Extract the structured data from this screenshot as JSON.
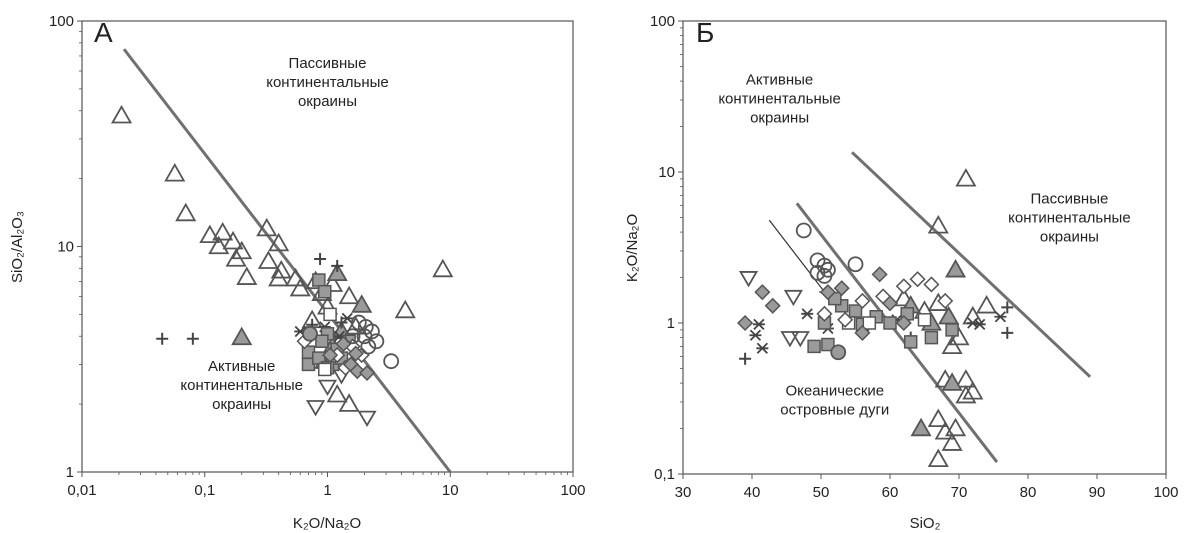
{
  "chart_data": [
    {
      "type": "scatter",
      "title": "А",
      "xlabel": "K₂O/Na₂O",
      "ylabel": "SiO₂/Al₂O₃",
      "xscale": "log",
      "yscale": "log",
      "xlim": [
        0.01,
        100
      ],
      "ylim": [
        1,
        100
      ],
      "xticks": [
        "0,01",
        "0,1",
        "1",
        "10",
        "100"
      ],
      "yticks": [
        "1",
        "10",
        "100"
      ],
      "regions": [
        {
          "lines": [
            "Пассивные",
            "континентальные",
            "окраины"
          ],
          "x": 1.0,
          "y": 62
        },
        {
          "lines": [
            "Активные",
            "континентальные",
            "окраины"
          ],
          "x": 0.2,
          "y": 2.8
        }
      ],
      "boundary": [
        [
          0.022,
          75
        ],
        [
          10,
          1
        ]
      ],
      "points": [
        {
          "m": "tri",
          "x": 0.021,
          "y": 38
        },
        {
          "m": "tri",
          "x": 0.057,
          "y": 21
        },
        {
          "m": "tri",
          "x": 0.07,
          "y": 14
        },
        {
          "m": "tri",
          "x": 0.11,
          "y": 11.2
        },
        {
          "m": "tri",
          "x": 0.14,
          "y": 11.5
        },
        {
          "m": "tri",
          "x": 0.17,
          "y": 10.5
        },
        {
          "m": "tri",
          "x": 0.13,
          "y": 10
        },
        {
          "m": "tri",
          "x": 0.2,
          "y": 9.5
        },
        {
          "m": "tri",
          "x": 0.18,
          "y": 8.8
        },
        {
          "m": "tri",
          "x": 0.22,
          "y": 7.3
        },
        {
          "m": "tri",
          "x": 0.32,
          "y": 12
        },
        {
          "m": "tri",
          "x": 0.4,
          "y": 10.3
        },
        {
          "m": "tri",
          "x": 0.33,
          "y": 8.6
        },
        {
          "m": "tri",
          "x": 0.42,
          "y": 7.8
        },
        {
          "m": "tri",
          "x": 0.4,
          "y": 7.2
        },
        {
          "m": "tri",
          "x": 0.55,
          "y": 7.2
        },
        {
          "m": "tri",
          "x": 0.6,
          "y": 6.5
        },
        {
          "m": "tri",
          "x": 0.8,
          "y": 7.0
        },
        {
          "m": "tri",
          "x": 0.9,
          "y": 6.2
        },
        {
          "m": "tri",
          "x": 1.1,
          "y": 6.8
        },
        {
          "m": "tri",
          "x": 1.5,
          "y": 6.0
        },
        {
          "m": "tri",
          "x": 1.0,
          "y": 5.4
        },
        {
          "m": "tri",
          "x": 0.75,
          "y": 4.7
        },
        {
          "m": "tri",
          "x": 1.7,
          "y": 4.4
        },
        {
          "m": "tri",
          "x": 4.3,
          "y": 5.2
        },
        {
          "m": "tri",
          "x": 8.7,
          "y": 7.9
        },
        {
          "m": "tri",
          "x": 1.2,
          "y": 2.2
        },
        {
          "m": "tri",
          "x": 1.5,
          "y": 2.0
        },
        {
          "m": "triF",
          "x": 0.2,
          "y": 3.95
        },
        {
          "m": "triF",
          "x": 1.2,
          "y": 7.6
        },
        {
          "m": "triF",
          "x": 1.9,
          "y": 5.5
        },
        {
          "m": "triF",
          "x": 1.3,
          "y": 4.2
        },
        {
          "m": "triF",
          "x": 1.1,
          "y": 3.6
        },
        {
          "m": "triF",
          "x": 0.95,
          "y": 3.1
        },
        {
          "m": "tridn",
          "x": 0.8,
          "y": 1.95
        },
        {
          "m": "tridn",
          "x": 2.1,
          "y": 1.75
        },
        {
          "m": "tridn",
          "x": 1.3,
          "y": 2.7
        },
        {
          "m": "tridn",
          "x": 1.0,
          "y": 2.4
        },
        {
          "m": "plus",
          "x": 0.045,
          "y": 3.9
        },
        {
          "m": "plus",
          "x": 0.08,
          "y": 3.9
        },
        {
          "m": "plus",
          "x": 0.87,
          "y": 8.8
        },
        {
          "m": "plus",
          "x": 1.2,
          "y": 8.2
        },
        {
          "m": "plus",
          "x": 1.3,
          "y": 4.6
        },
        {
          "m": "plus",
          "x": 0.75,
          "y": 4.5
        },
        {
          "m": "star",
          "x": 0.6,
          "y": 4.2
        },
        {
          "m": "star",
          "x": 0.95,
          "y": 4.4
        },
        {
          "m": "star",
          "x": 1.25,
          "y": 4.0
        },
        {
          "m": "star",
          "x": 1.45,
          "y": 4.8
        },
        {
          "m": "sqF",
          "x": 0.85,
          "y": 7.1
        },
        {
          "m": "sqF",
          "x": 0.95,
          "y": 6.3
        },
        {
          "m": "sqF",
          "x": 0.7,
          "y": 3.4
        },
        {
          "m": "sqF",
          "x": 0.7,
          "y": 3.0
        },
        {
          "m": "sqF",
          "x": 1.0,
          "y": 4.1
        },
        {
          "m": "sqF",
          "x": 0.9,
          "y": 3.8
        },
        {
          "m": "sqF",
          "x": 1.2,
          "y": 3.5
        },
        {
          "m": "sqF",
          "x": 1.1,
          "y": 3.0
        },
        {
          "m": "sqF",
          "x": 1.3,
          "y": 3.2
        },
        {
          "m": "sqF",
          "x": 0.85,
          "y": 3.2
        },
        {
          "m": "sqF",
          "x": 1.5,
          "y": 3.8
        },
        {
          "m": "sqF",
          "x": 1.0,
          "y": 2.9
        },
        {
          "m": "sq",
          "x": 1.05,
          "y": 5.0
        },
        {
          "m": "sq",
          "x": 0.95,
          "y": 2.85
        },
        {
          "m": "dia",
          "x": 0.65,
          "y": 3.8
        },
        {
          "m": "dia",
          "x": 1.2,
          "y": 3.3
        },
        {
          "m": "dia",
          "x": 1.4,
          "y": 2.9
        },
        {
          "m": "dia",
          "x": 1.9,
          "y": 3.3
        },
        {
          "m": "dia",
          "x": 1.6,
          "y": 3.6
        },
        {
          "m": "diaF",
          "x": 1.55,
          "y": 3.0
        },
        {
          "m": "diaF",
          "x": 1.75,
          "y": 2.8
        },
        {
          "m": "diaF",
          "x": 2.1,
          "y": 2.75
        },
        {
          "m": "diaF",
          "x": 1.7,
          "y": 3.35
        },
        {
          "m": "diaF",
          "x": 1.35,
          "y": 3.7
        },
        {
          "m": "diaF",
          "x": 1.05,
          "y": 3.3
        },
        {
          "m": "circ",
          "x": 1.8,
          "y": 4.6
        },
        {
          "m": "circ",
          "x": 2.05,
          "y": 4.4
        },
        {
          "m": "circ",
          "x": 2.3,
          "y": 4.2
        },
        {
          "m": "circ",
          "x": 2.0,
          "y": 4.0
        },
        {
          "m": "circ",
          "x": 2.5,
          "y": 3.8
        },
        {
          "m": "circ",
          "x": 2.15,
          "y": 3.6
        },
        {
          "m": "circ",
          "x": 1.6,
          "y": 4.0
        },
        {
          "m": "circ",
          "x": 3.3,
          "y": 3.1
        },
        {
          "m": "circF",
          "x": 0.72,
          "y": 4.1
        }
      ]
    },
    {
      "type": "scatter",
      "title": "Б",
      "xlabel": "SiO₂",
      "ylabel": "K₂O/Na₂O",
      "xscale": "linear",
      "yscale": "log",
      "xlim": [
        30,
        100
      ],
      "ylim": [
        0.1,
        100
      ],
      "xticks": [
        "30",
        "40",
        "50",
        "60",
        "70",
        "80",
        "90",
        "100"
      ],
      "yticks": [
        "0,1",
        "1",
        "10",
        "100"
      ],
      "regions": [
        {
          "lines": [
            "Активные",
            "континентальные",
            "окраины"
          ],
          "x": 44,
          "y": 38
        },
        {
          "lines": [
            "Пассивные",
            "континентальные",
            "окраины"
          ],
          "x": 86,
          "y": 6.2
        },
        {
          "lines": [
            "Океанические",
            "островные дуги"
          ],
          "x": 52,
          "y": 0.33
        }
      ],
      "boundaries": [
        [
          [
            54.5,
            13.5
          ],
          [
            89,
            0.44
          ]
        ],
        [
          [
            46.5,
            6.2
          ],
          [
            75.5,
            0.12
          ]
        ]
      ],
      "arrow": [
        [
          42.5,
          4.8
        ],
        [
          51,
          1.5
        ]
      ],
      "points": [
        {
          "m": "tri",
          "x": 71,
          "y": 9.0
        },
        {
          "m": "tri",
          "x": 67,
          "y": 4.4
        },
        {
          "m": "tri",
          "x": 69,
          "y": 0.7
        },
        {
          "m": "tri",
          "x": 70,
          "y": 0.8
        },
        {
          "m": "tri",
          "x": 68,
          "y": 0.42
        },
        {
          "m": "tri",
          "x": 71,
          "y": 0.42
        },
        {
          "m": "tri",
          "x": 72,
          "y": 0.35
        },
        {
          "m": "tri",
          "x": 67,
          "y": 0.23
        },
        {
          "m": "tri",
          "x": 68,
          "y": 0.19
        },
        {
          "m": "tri",
          "x": 69.5,
          "y": 0.2
        },
        {
          "m": "tri",
          "x": 67,
          "y": 0.125
        },
        {
          "m": "tri",
          "x": 69,
          "y": 0.16
        },
        {
          "m": "tri",
          "x": 71,
          "y": 0.33
        },
        {
          "m": "tri",
          "x": 65,
          "y": 1.2
        },
        {
          "m": "tri",
          "x": 67,
          "y": 1.35
        },
        {
          "m": "tri",
          "x": 72,
          "y": 1.1
        },
        {
          "m": "tri",
          "x": 74,
          "y": 1.3
        },
        {
          "m": "tri",
          "x": 62,
          "y": 1.45
        },
        {
          "m": "triF",
          "x": 69.5,
          "y": 2.25
        },
        {
          "m": "triF",
          "x": 64.5,
          "y": 0.2
        },
        {
          "m": "triF",
          "x": 69,
          "y": 0.4
        },
        {
          "m": "triF",
          "x": 66,
          "y": 1.0
        },
        {
          "m": "triF",
          "x": 68.5,
          "y": 1.1
        },
        {
          "m": "triF",
          "x": 63,
          "y": 1.3
        },
        {
          "m": "tridn",
          "x": 39.5,
          "y": 2.0
        },
        {
          "m": "tridn",
          "x": 46,
          "y": 1.5
        },
        {
          "m": "tridn",
          "x": 45.5,
          "y": 0.8
        },
        {
          "m": "tridn",
          "x": 47,
          "y": 0.8
        },
        {
          "m": "star",
          "x": 41,
          "y": 0.98
        },
        {
          "m": "star",
          "x": 40.5,
          "y": 0.83
        },
        {
          "m": "star",
          "x": 41.5,
          "y": 0.68
        },
        {
          "m": "star",
          "x": 51,
          "y": 0.92
        },
        {
          "m": "star",
          "x": 61,
          "y": 1.05
        },
        {
          "m": "star",
          "x": 72,
          "y": 1.0
        },
        {
          "m": "star",
          "x": 73,
          "y": 0.98
        },
        {
          "m": "star",
          "x": 76,
          "y": 1.1
        },
        {
          "m": "star",
          "x": 48,
          "y": 1.15
        },
        {
          "m": "plus",
          "x": 39,
          "y": 0.58
        },
        {
          "m": "plus",
          "x": 77,
          "y": 0.86
        },
        {
          "m": "plus",
          "x": 77,
          "y": 1.27
        },
        {
          "m": "plus",
          "x": 63,
          "y": 0.8
        },
        {
          "m": "sqF",
          "x": 49,
          "y": 0.7
        },
        {
          "m": "sqF",
          "x": 51,
          "y": 0.72
        },
        {
          "m": "sqF",
          "x": 50.5,
          "y": 1.0
        },
        {
          "m": "sqF",
          "x": 53,
          "y": 1.3
        },
        {
          "m": "sqF",
          "x": 55,
          "y": 1.2
        },
        {
          "m": "sqF",
          "x": 56,
          "y": 0.98
        },
        {
          "m": "sqF",
          "x": 58,
          "y": 1.1
        },
        {
          "m": "sqF",
          "x": 60,
          "y": 1.0
        },
        {
          "m": "sqF",
          "x": 62.5,
          "y": 1.15
        },
        {
          "m": "sqF",
          "x": 63,
          "y": 0.75
        },
        {
          "m": "sqF",
          "x": 66,
          "y": 0.8
        },
        {
          "m": "sqF",
          "x": 69,
          "y": 0.9
        },
        {
          "m": "sqF",
          "x": 52,
          "y": 1.45
        },
        {
          "m": "sq",
          "x": 57,
          "y": 1.0
        },
        {
          "m": "sq",
          "x": 54,
          "y": 1.0
        },
        {
          "m": "sq",
          "x": 65,
          "y": 1.05
        },
        {
          "m": "dia",
          "x": 50.5,
          "y": 1.15
        },
        {
          "m": "dia",
          "x": 53.5,
          "y": 1.05
        },
        {
          "m": "dia",
          "x": 62,
          "y": 1.75
        },
        {
          "m": "dia",
          "x": 64,
          "y": 1.95
        },
        {
          "m": "dia",
          "x": 66,
          "y": 1.8
        },
        {
          "m": "dia",
          "x": 68,
          "y": 1.4
        },
        {
          "m": "dia",
          "x": 59,
          "y": 1.5
        },
        {
          "m": "dia",
          "x": 56,
          "y": 1.4
        },
        {
          "m": "diaF",
          "x": 39,
          "y": 1.0
        },
        {
          "m": "diaF",
          "x": 41.5,
          "y": 1.6
        },
        {
          "m": "diaF",
          "x": 43,
          "y": 1.3
        },
        {
          "m": "diaF",
          "x": 58.5,
          "y": 2.1
        },
        {
          "m": "diaF",
          "x": 53,
          "y": 1.7
        },
        {
          "m": "diaF",
          "x": 56,
          "y": 0.86
        },
        {
          "m": "diaF",
          "x": 60,
          "y": 1.35
        },
        {
          "m": "diaF",
          "x": 62,
          "y": 1.0
        },
        {
          "m": "diaF",
          "x": 51,
          "y": 1.6
        },
        {
          "m": "circ",
          "x": 47.5,
          "y": 4.1
        },
        {
          "m": "circ",
          "x": 49.5,
          "y": 2.6
        },
        {
          "m": "circ",
          "x": 50.5,
          "y": 2.4
        },
        {
          "m": "circ",
          "x": 49.5,
          "y": 2.15
        },
        {
          "m": "circ",
          "x": 50.5,
          "y": 2.05
        },
        {
          "m": "circ",
          "x": 51,
          "y": 2.25
        },
        {
          "m": "circ",
          "x": 55,
          "y": 2.45
        },
        {
          "m": "circF",
          "x": 52.5,
          "y": 0.64
        }
      ]
    }
  ]
}
